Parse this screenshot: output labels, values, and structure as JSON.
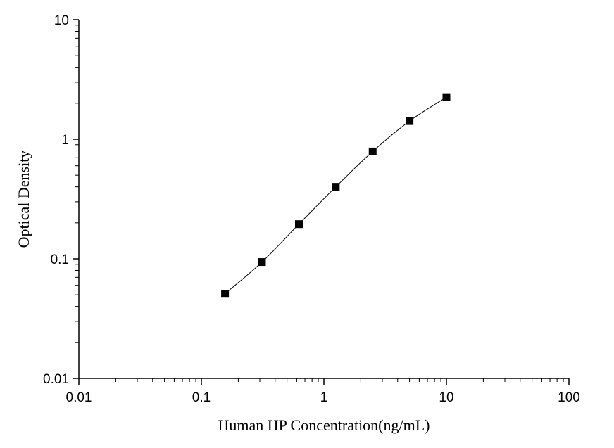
{
  "chart_data": {
    "type": "scatter",
    "title": "",
    "xlabel": "Human HP Concentration(ng/mL)",
    "ylabel": "Optical Density",
    "xscale": "log",
    "yscale": "log",
    "xlim": [
      0.01,
      100
    ],
    "ylim": [
      0.01,
      10
    ],
    "x_ticks": [
      0.01,
      0.1,
      1,
      10,
      100
    ],
    "x_tick_labels": [
      "0.01",
      "0.1",
      "1",
      "10",
      "100"
    ],
    "y_ticks": [
      0.01,
      0.1,
      1,
      10
    ],
    "y_tick_labels": [
      "0.01",
      "0.1",
      "1",
      "10"
    ],
    "grid": false,
    "legend": "none",
    "series": [
      {
        "marker": "square",
        "fit_line": "smooth curve",
        "color": "#000000",
        "x": [
          0.156,
          0.312,
          0.625,
          1.25,
          2.5,
          5,
          10
        ],
        "y": [
          0.051,
          0.094,
          0.195,
          0.4,
          0.79,
          1.42,
          2.25
        ]
      }
    ]
  }
}
